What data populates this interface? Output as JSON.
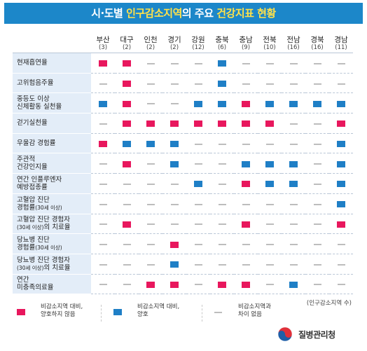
{
  "title": {
    "prefix": "시·도별 ",
    "hl1": "인구감소지역",
    "mid": "의 주요 ",
    "hl2": "건강지표 현황"
  },
  "colors": {
    "worse": "#e8175d",
    "better": "#1f7fc6",
    "none": "#bdbdbd",
    "title_bg": "#1c87c9",
    "highlight": "#ffe14a"
  },
  "regions": [
    {
      "name": "부산",
      "count": "(3)"
    },
    {
      "name": "대구",
      "count": "(2)"
    },
    {
      "name": "인천",
      "count": "(2)"
    },
    {
      "name": "경기",
      "count": "(2)"
    },
    {
      "name": "강원",
      "count": "(12)"
    },
    {
      "name": "충북",
      "count": "(6)"
    },
    {
      "name": "충남",
      "count": "(9)"
    },
    {
      "name": "전북",
      "count": "(10)"
    },
    {
      "name": "전남",
      "count": "(16)"
    },
    {
      "name": "경북",
      "count": "(16)"
    },
    {
      "name": "경남",
      "count": "(11)"
    }
  ],
  "indicators": [
    {
      "lines": [
        "현재흡연율"
      ],
      "values": [
        "R",
        "R",
        "N",
        "N",
        "N",
        "B",
        "N",
        "N",
        "N",
        "N",
        "N"
      ]
    },
    {
      "lines": [
        "고위험음주율"
      ],
      "values": [
        "N",
        "R",
        "N",
        "N",
        "N",
        "B",
        "N",
        "N",
        "N",
        "N",
        "N"
      ]
    },
    {
      "lines": [
        "중등도 이상",
        "신체활동 실천율"
      ],
      "values": [
        "B",
        "R",
        "N",
        "N",
        "B",
        "B",
        "R",
        "B",
        "B",
        "B",
        "B"
      ]
    },
    {
      "lines": [
        "걷기실천율"
      ],
      "values": [
        "N",
        "R",
        "R",
        "R",
        "R",
        "R",
        "R",
        "R",
        "N",
        "N",
        "R"
      ]
    },
    {
      "lines": [
        "우울감 경험률"
      ],
      "values": [
        "R",
        "B",
        "B",
        "B",
        "N",
        "N",
        "N",
        "N",
        "N",
        "N",
        "B"
      ]
    },
    {
      "lines": [
        "주관적",
        "건강인지율"
      ],
      "values": [
        "N",
        "R",
        "N",
        "B",
        "N",
        "N",
        "B",
        "B",
        "B",
        "N",
        "B"
      ]
    },
    {
      "lines": [
        "연간 인플루엔자",
        "예방접종률"
      ],
      "values": [
        "N",
        "N",
        "N",
        "N",
        "B",
        "N",
        "R",
        "B",
        "B",
        "N",
        "B"
      ]
    },
    {
      "lines": [
        "고혈압 진단",
        "경험률"
      ],
      "sub": [
        "",
        "(30세 이상)"
      ],
      "values": [
        "N",
        "N",
        "N",
        "N",
        "N",
        "N",
        "N",
        "N",
        "N",
        "N",
        "B"
      ]
    },
    {
      "lines": [
        "고혈압 진단 경험자",
        "의 치료율"
      ],
      "sub": [
        "",
        ""
      ],
      "pre": [
        "",
        "(30세 이상)"
      ],
      "values": [
        "N",
        "R",
        "N",
        "N",
        "N",
        "N",
        "R",
        "N",
        "N",
        "N",
        "R"
      ]
    },
    {
      "lines": [
        "당뇨병 진단",
        "경험률"
      ],
      "sub": [
        "",
        "(30세 이상)"
      ],
      "values": [
        "N",
        "N",
        "N",
        "R",
        "N",
        "N",
        "N",
        "N",
        "N",
        "N",
        "N"
      ]
    },
    {
      "lines": [
        "당뇨병 진단 경험자",
        "의 치료율"
      ],
      "sub": [
        "",
        ""
      ],
      "pre": [
        "",
        "(30세 이상)"
      ],
      "values": [
        "N",
        "N",
        "N",
        "B",
        "N",
        "N",
        "N",
        "N",
        "N",
        "N",
        "N"
      ]
    },
    {
      "lines": [
        "연간",
        "미충족의료율"
      ],
      "values": [
        "N",
        "N",
        "R",
        "R",
        "N",
        "R",
        "R",
        "N",
        "B",
        "N",
        "N"
      ]
    }
  ],
  "note": "(인구감소지역 수)",
  "legend": {
    "worse": "비감소지역 대비,\n양호하지 않음",
    "better": "비감소지역 대비,\n양호",
    "none": "비감소지역과\n차이 없음"
  },
  "agency": "질병관리청"
}
